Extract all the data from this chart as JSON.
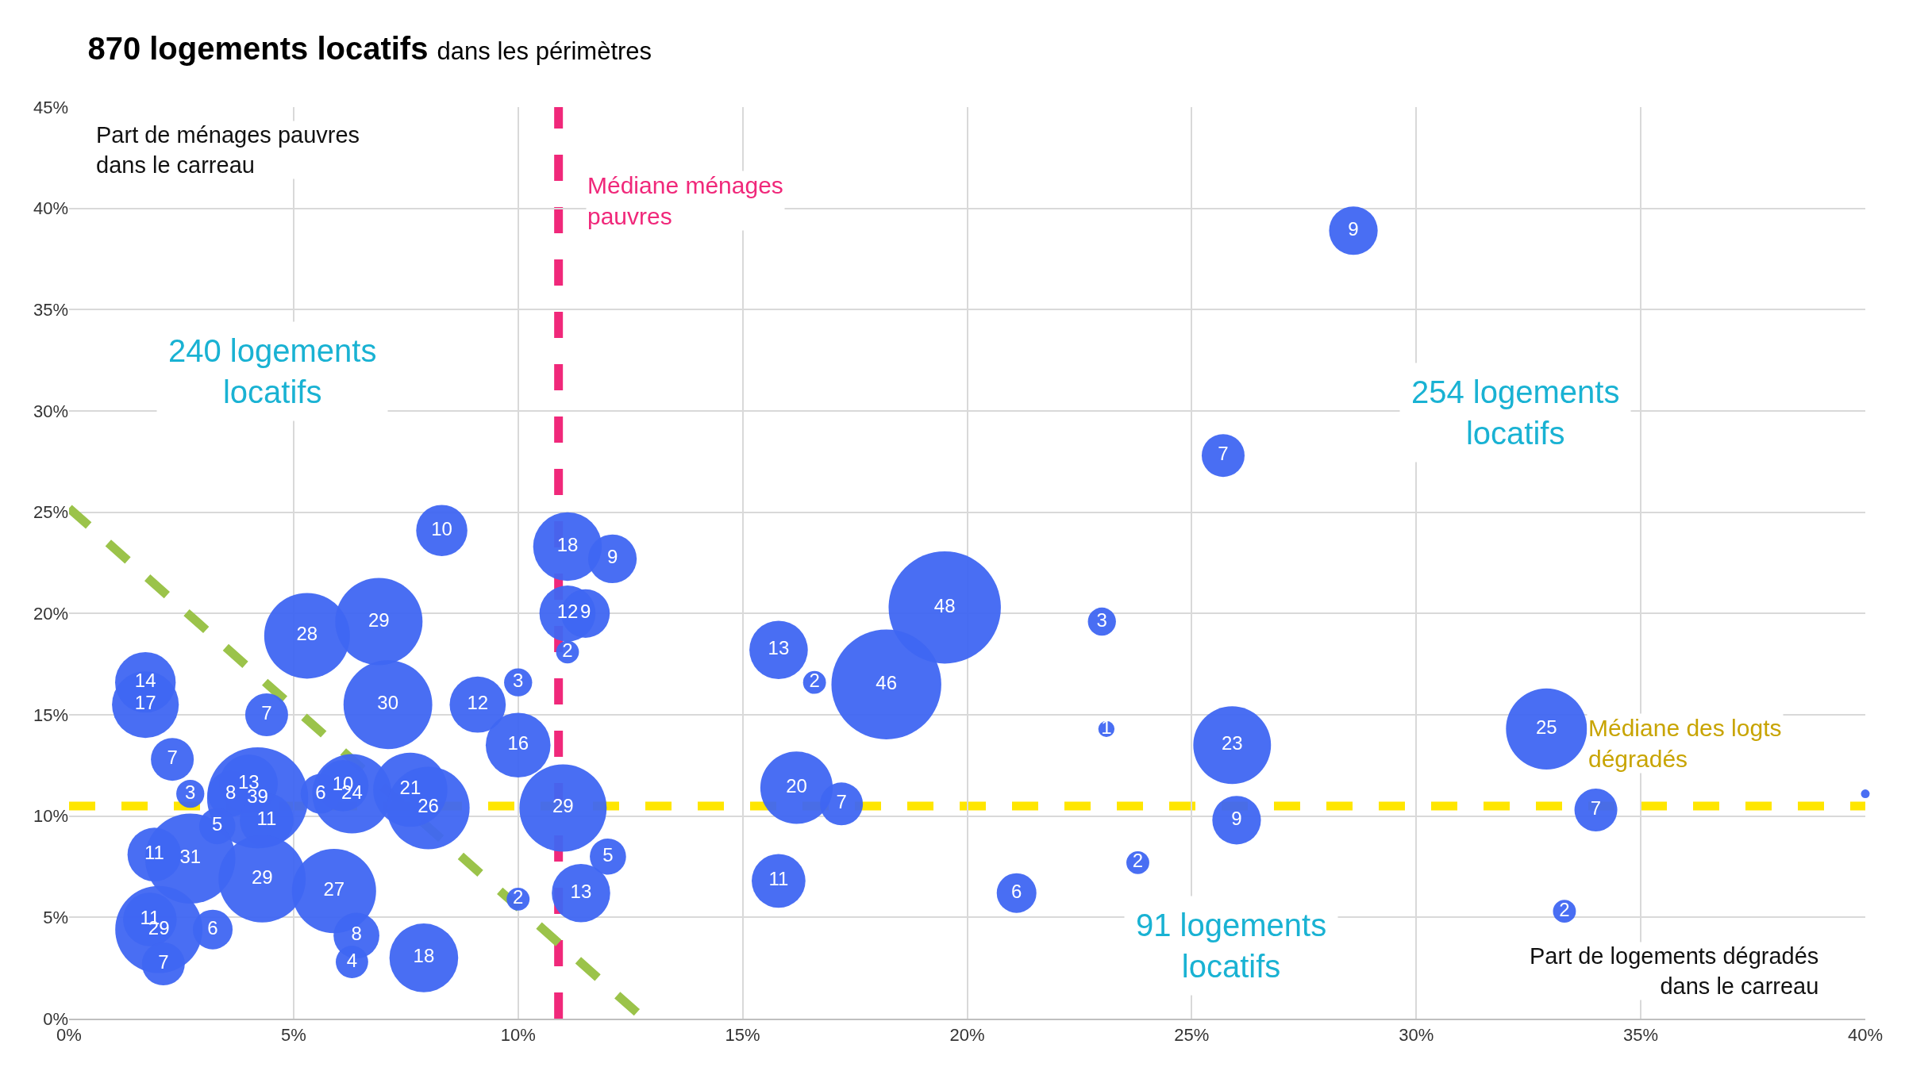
{
  "chart_data": {
    "type": "bubble",
    "title": "870 logements locatifs",
    "subtitle": "dans les périmètres",
    "xlabel": "Part de logements dégradés dans le carreau",
    "ylabel": "Part de ménages pauvres dans le carreau",
    "annotations": [
      "240 logements locatifs",
      "254 logements locatifs",
      "91 logements locatifs"
    ],
    "xlim": [
      0,
      40
    ],
    "xticks": [
      {
        "value": 0,
        "label": "0%"
      },
      {
        "value": 5,
        "label": "5%"
      },
      {
        "value": 10,
        "label": "10%"
      },
      {
        "value": 15,
        "label": "15%"
      },
      {
        "value": 20,
        "label": "20%"
      },
      {
        "value": 25,
        "label": "25%"
      },
      {
        "value": 30,
        "label": "30%"
      },
      {
        "value": 35,
        "label": "35%"
      },
      {
        "value": 40,
        "label": "40%"
      }
    ],
    "ylim": [
      0,
      45
    ],
    "yticks": [
      {
        "value": 0,
        "label": "0%"
      },
      {
        "value": 5,
        "label": "5%"
      },
      {
        "value": 10,
        "label": "10%"
      },
      {
        "value": 15,
        "label": "15%"
      },
      {
        "value": 20,
        "label": "20%"
      },
      {
        "value": 25,
        "label": "25%"
      },
      {
        "value": 30,
        "label": "30%"
      },
      {
        "value": 35,
        "label": "35%"
      },
      {
        "value": 40,
        "label": "40%"
      },
      {
        "value": 45,
        "label": "45%"
      }
    ],
    "grid": true,
    "series": [
      {
        "type": "line",
        "color": "#9bc34a",
        "line_style": "dashed",
        "x": [
          0,
          12.8
        ],
        "values": [
          25.2,
          0
        ]
      },
      {
        "color": "#3f66f2",
        "x": [
          8.3,
          11.1,
          12.1,
          11.1,
          11.5,
          11.1,
          5.3,
          6.9,
          1.7,
          1.7,
          4.4,
          7.1,
          9.1,
          10.0,
          10.0,
          2.3,
          2.7,
          3.6,
          4.0,
          4.2,
          4.4,
          3.3,
          5.6,
          6.1,
          6.3,
          7.6,
          8.0,
          11.0,
          1.9,
          2.7,
          4.3,
          5.9,
          12.0,
          10.0,
          11.4,
          1.8,
          2.0,
          3.2,
          2.1,
          6.4,
          6.3,
          7.9,
          28.6,
          25.7,
          19.5,
          15.8,
          16.6,
          18.2,
          23.0,
          23.1,
          25.9,
          32.9,
          16.2,
          17.2,
          26.0,
          34.0,
          15.8,
          21.1,
          23.8,
          33.3
        ],
        "values": [
          24.1,
          23.3,
          22.7,
          20.0,
          20.0,
          18.1,
          18.9,
          19.6,
          16.6,
          15.5,
          15.0,
          15.5,
          15.5,
          16.6,
          13.5,
          12.8,
          11.1,
          11.1,
          11.6,
          10.9,
          9.8,
          9.5,
          11.1,
          11.5,
          11.1,
          11.3,
          10.4,
          10.4,
          8.1,
          7.9,
          6.9,
          6.3,
          8.0,
          5.9,
          6.2,
          4.9,
          4.4,
          4.4,
          2.7,
          4.1,
          2.8,
          3.0,
          38.9,
          27.8,
          20.3,
          18.2,
          16.6,
          16.5,
          19.6,
          14.3,
          13.5,
          14.3,
          11.4,
          10.6,
          9.8,
          10.3,
          6.8,
          6.2,
          7.7,
          5.3
        ],
        "sizes": [
          10,
          18,
          9,
          12,
          9,
          2,
          28,
          29,
          14,
          17,
          7,
          30,
          12,
          3,
          16,
          7,
          3,
          8,
          13,
          39,
          11,
          5,
          6,
          10,
          24,
          21,
          26,
          29,
          11,
          31,
          29,
          27,
          5,
          2,
          13,
          11,
          29,
          6,
          7,
          8,
          4,
          18,
          9,
          7,
          48,
          13,
          2,
          46,
          3,
          1,
          23,
          25,
          20,
          7,
          9,
          7,
          11,
          6,
          2,
          2
        ],
        "value_labels": [
          "10",
          "18",
          "9",
          "12",
          "9",
          "2",
          "28",
          "29",
          "14",
          "17",
          "7",
          "30",
          "12",
          "3",
          "16",
          "7",
          "3",
          "8",
          "13",
          "39",
          "11",
          "5",
          "6",
          "10",
          "24",
          "21",
          "26",
          "29",
          "11",
          "31",
          "29",
          "27",
          "5",
          "2",
          "13",
          "11",
          "29",
          "6",
          "7",
          "8",
          "4",
          "18",
          "9",
          "7",
          "48",
          "13",
          "2",
          "46",
          "3",
          "1",
          "23",
          "25",
          "20",
          "7",
          "9",
          "7",
          "11",
          "6",
          "2",
          "2"
        ]
      },
      {
        "type": "scatter",
        "color": "#3f66f2",
        "x": [
          40.0
        ],
        "values": [
          11.1
        ]
      }
    ],
    "ref_lines": [
      {
        "axis": "x",
        "value": 10.9,
        "label": "Médiane ménages pauvres",
        "color": "#f0287a",
        "line_style": "dashed"
      },
      {
        "axis": "y",
        "value": 10.5,
        "label": "Médiane des logts dégradés",
        "color": "#ffe600",
        "line_style": "dashed"
      }
    ]
  }
}
